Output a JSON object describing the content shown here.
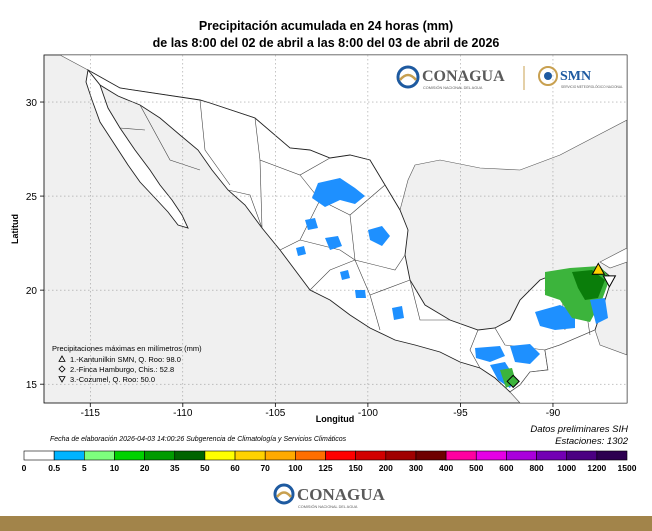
{
  "title_line1": "Precipitación acumulada en 24 horas (mm)",
  "title_line2": "de las 8:00 del 02 de abril a las 8:00 del 03 de abril de 2026",
  "logos": {
    "conagua_text": "CONAGUA",
    "conagua_sub": "COMISIÓN NACIONAL DEL AGUA",
    "smn_text": "SMN",
    "smn_sub": "SERVICIO METEOROLÓGICO NACIONAL"
  },
  "axes": {
    "xlabel": "Longitud",
    "ylabel": "Latitud",
    "xticks": [
      -115,
      -110,
      -105,
      -100,
      -95,
      -90
    ],
    "yticks": [
      15,
      20,
      25,
      30
    ],
    "xlim": [
      -117.5,
      -86
    ],
    "ylim": [
      14,
      32.5
    ]
  },
  "maxima": {
    "heading": "Precipitaciones máximas en milímetros (mm)",
    "items": [
      {
        "label": "1.-Kantunilkin SMN, Q. Roo: 98.0",
        "marker": "triangle-up",
        "lon": -87.55,
        "lat": 21.1
      },
      {
        "label": "2.-Finca Hamburgo, Chis.: 52.8",
        "marker": "diamond",
        "lon": -92.15,
        "lat": 15.15
      },
      {
        "label": "3.-Cozumel, Q. Roo: 50.0",
        "marker": "triangle-down",
        "lon": -86.95,
        "lat": 20.5
      }
    ]
  },
  "fecha": "Fecha de elaboración 2026-04-03 14:00:26 Subgerencia de Climatología y Servicios Climáticos",
  "datos": "Datos preliminares SIH",
  "estaciones": "Estaciones:  1302",
  "colorbar": {
    "labels": [
      "0",
      "0.5",
      "5",
      "10",
      "20",
      "35",
      "50",
      "60",
      "70",
      "100",
      "125",
      "150",
      "200",
      "300",
      "400",
      "500",
      "600",
      "800",
      "1000",
      "1200",
      "1500"
    ],
    "colors": [
      "#ffffff",
      "#00b4ff",
      "#7dff7d",
      "#00d200",
      "#009b00",
      "#006400",
      "#ffff00",
      "#ffd200",
      "#ffaa00",
      "#ff6e00",
      "#ff0000",
      "#d20000",
      "#a00000",
      "#6e0000",
      "#ff00a0",
      "#e600e6",
      "#aa00dc",
      "#7300b4",
      "#4b0082",
      "#2d0050"
    ]
  },
  "footer_logo": {
    "text": "CONAGUA",
    "sub": "COMISIÓN NACIONAL DEL AGUA"
  },
  "colors": {
    "sea": "#f0f0f0",
    "land": "#ffffff",
    "rain_light": "#1e90ff",
    "rain_green": "#3cb43c",
    "rain_darkgreen": "#0a7d0a",
    "footer_band": "#a2844a",
    "conagua_text": "#5a5a5a",
    "smn_blue": "#1e5aa0"
  }
}
